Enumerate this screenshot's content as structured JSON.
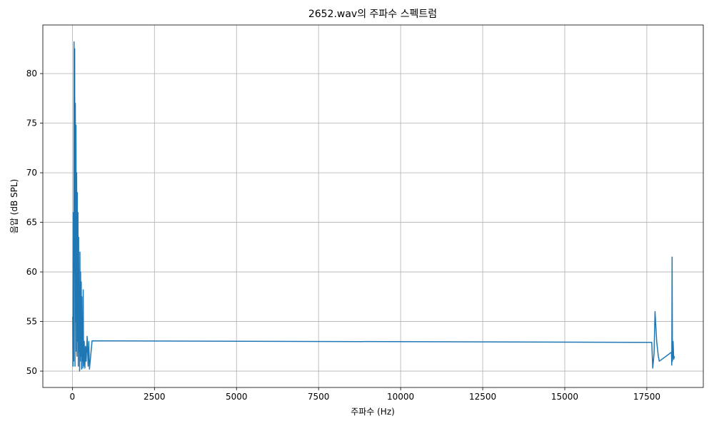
{
  "chart_data": {
    "type": "line",
    "title": "2652.wav의 주파수 스펙트럼",
    "x_label": "주파수 (Hz)",
    "y_label": "음압 (dB SPL)",
    "x": [
      10,
      20,
      30,
      40,
      50,
      60,
      70,
      80,
      90,
      100,
      110,
      120,
      130,
      140,
      150,
      160,
      170,
      180,
      190,
      200,
      210,
      220,
      230,
      240,
      250,
      260,
      270,
      280,
      290,
      300,
      310,
      320,
      330,
      340,
      360,
      380,
      400,
      420,
      450,
      480,
      500,
      520,
      600,
      17650,
      17680,
      17700,
      17720,
      17750,
      17800,
      17850,
      17880,
      18250,
      18260,
      18270,
      18280,
      18300,
      18320,
      18340
    ],
    "values": [
      55.5,
      50.5,
      66,
      51,
      83.2,
      60,
      82.5,
      50.5,
      77,
      55,
      74.8,
      52,
      70,
      51.5,
      68,
      53,
      66,
      50.5,
      63.5,
      52,
      57,
      50,
      62,
      51,
      60,
      51.5,
      59,
      50.2,
      57.5,
      51,
      55,
      50.3,
      58.2,
      50.5,
      53,
      50.3,
      52.5,
      51,
      53.5,
      50.5,
      53,
      50.2,
      53.05,
      52.9,
      50.3,
      51,
      51.8,
      56,
      53,
      51.5,
      51,
      51.9,
      50.6,
      61.5,
      51,
      53,
      51.2,
      51.5
    ],
    "color": "#1f77b4",
    "xlim": [
      -900,
      19220
    ],
    "xticks": [
      0,
      2500,
      5000,
      7500,
      10000,
      12500,
      15000,
      17500
    ],
    "ylim": [
      48.35,
      84.9
    ],
    "yticks": [
      50,
      55,
      60,
      65,
      70,
      75,
      80
    ],
    "grid": true
  }
}
